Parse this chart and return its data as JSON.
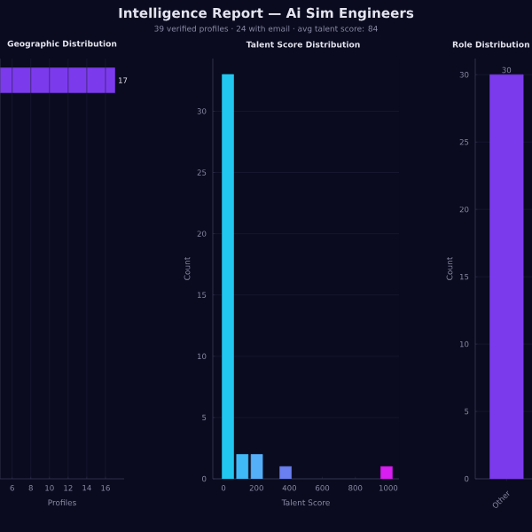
{
  "chart_data": [
    {
      "type": "other",
      "title": "Intelligence Report — Ai Sim Engineers",
      "subtitle": "39 verified profiles  ·  24 with email  ·  avg talent score: 84"
    },
    {
      "type": "bar",
      "orientation": "horizontal",
      "title": "Geographic Distribution",
      "xlabel": "Profiles",
      "categories": [
        null
      ],
      "values": [
        17
      ],
      "value_labels": [
        "17"
      ],
      "color": "#7c3aed",
      "xlim": [
        4.7,
        18
      ],
      "xticks": [
        6,
        8,
        10,
        12,
        14,
        16
      ],
      "grid": "x"
    },
    {
      "type": "histogram",
      "title": "Talent Score Distribution",
      "xlabel": "Talent Score",
      "ylabel": "Count",
      "bins": [
        -17,
        70.5,
        158,
        245.5,
        333,
        420.5,
        508,
        595.5,
        683,
        770.5,
        858,
        945.5,
        1033
      ],
      "values": [
        33,
        2,
        2,
        0,
        1,
        0,
        0,
        0,
        0,
        0,
        0,
        1
      ],
      "colors": [
        "#22c7f0",
        "#40baf6",
        "#55aef8",
        "#5f9cf5",
        "#6a7ff0",
        "#7a70ee",
        "#8a60ec",
        "#9a50ea",
        "#aa40e8",
        "#ba30ea",
        "#ca25ec",
        "#d81ef0"
      ],
      "xlim": [
        -65,
        1065
      ],
      "ylim": [
        0,
        34.3
      ],
      "xticks": [
        0,
        200,
        400,
        600,
        800,
        1000
      ],
      "yticks": [
        0,
        5,
        10,
        15,
        20,
        25,
        30
      ],
      "grid": "y"
    },
    {
      "type": "bar",
      "title": "Role Distribution",
      "ylabel": "Count",
      "categories": [
        "Other"
      ],
      "values": [
        30
      ],
      "value_labels": [
        "30"
      ],
      "color": "#7c3aed",
      "ylim": [
        0,
        31.2
      ],
      "yticks": [
        0,
        5,
        10,
        15,
        20,
        25,
        30
      ],
      "grid": "y"
    }
  ]
}
